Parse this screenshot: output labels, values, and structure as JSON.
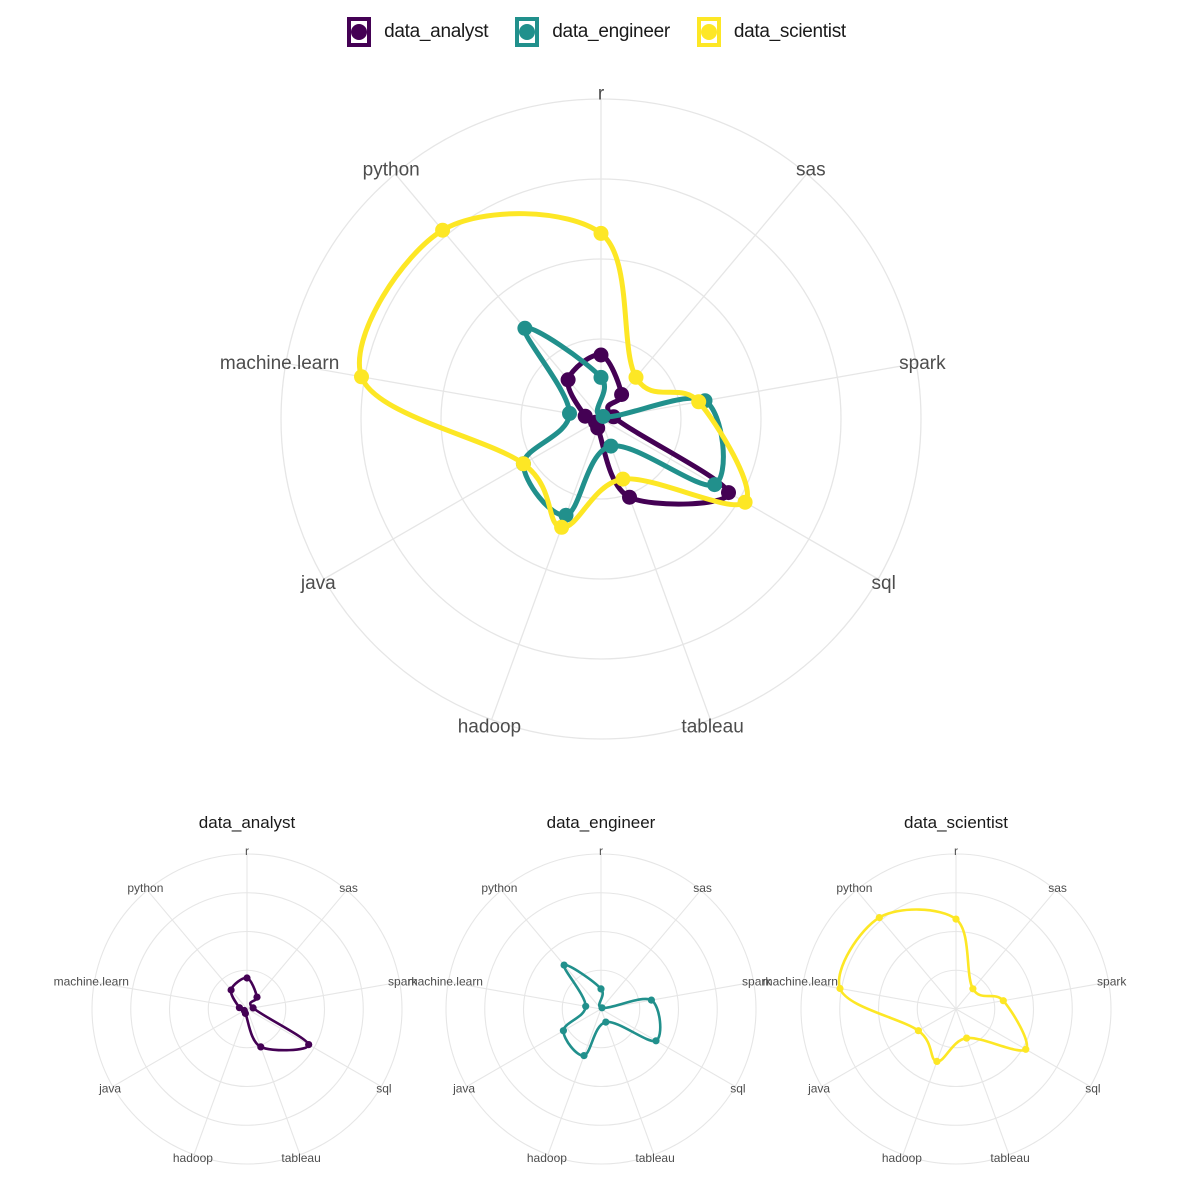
{
  "chart_data": {
    "type": "radar",
    "axes": [
      "hadoop",
      "java",
      "machine.learn",
      "python",
      "r",
      "sas",
      "spark",
      "sql",
      "tableau"
    ],
    "rmax": 1.0,
    "rings": [
      0.25,
      0.5,
      0.75,
      1.0
    ],
    "grid": true,
    "legend_position": "top",
    "series": [
      {
        "name": "data_analyst",
        "color": "#440154",
        "values": [
          0.03,
          0.02,
          0.05,
          0.16,
          0.2,
          0.1,
          0.04,
          0.46,
          0.26
        ]
      },
      {
        "name": "data_engineer",
        "color": "#21908C",
        "values": [
          0.32,
          0.28,
          0.1,
          0.37,
          0.13,
          0.01,
          0.33,
          0.41,
          0.09
        ]
      },
      {
        "name": "data_scientist",
        "color": "#FDE725",
        "values": [
          0.36,
          0.28,
          0.76,
          0.77,
          0.58,
          0.17,
          0.31,
          0.52,
          0.2
        ]
      }
    ]
  },
  "legend": {
    "items": [
      "data_analyst",
      "data_engineer",
      "data_scientist"
    ]
  },
  "panels": {
    "titles": [
      "data_analyst",
      "data_engineer",
      "data_scientist"
    ]
  }
}
